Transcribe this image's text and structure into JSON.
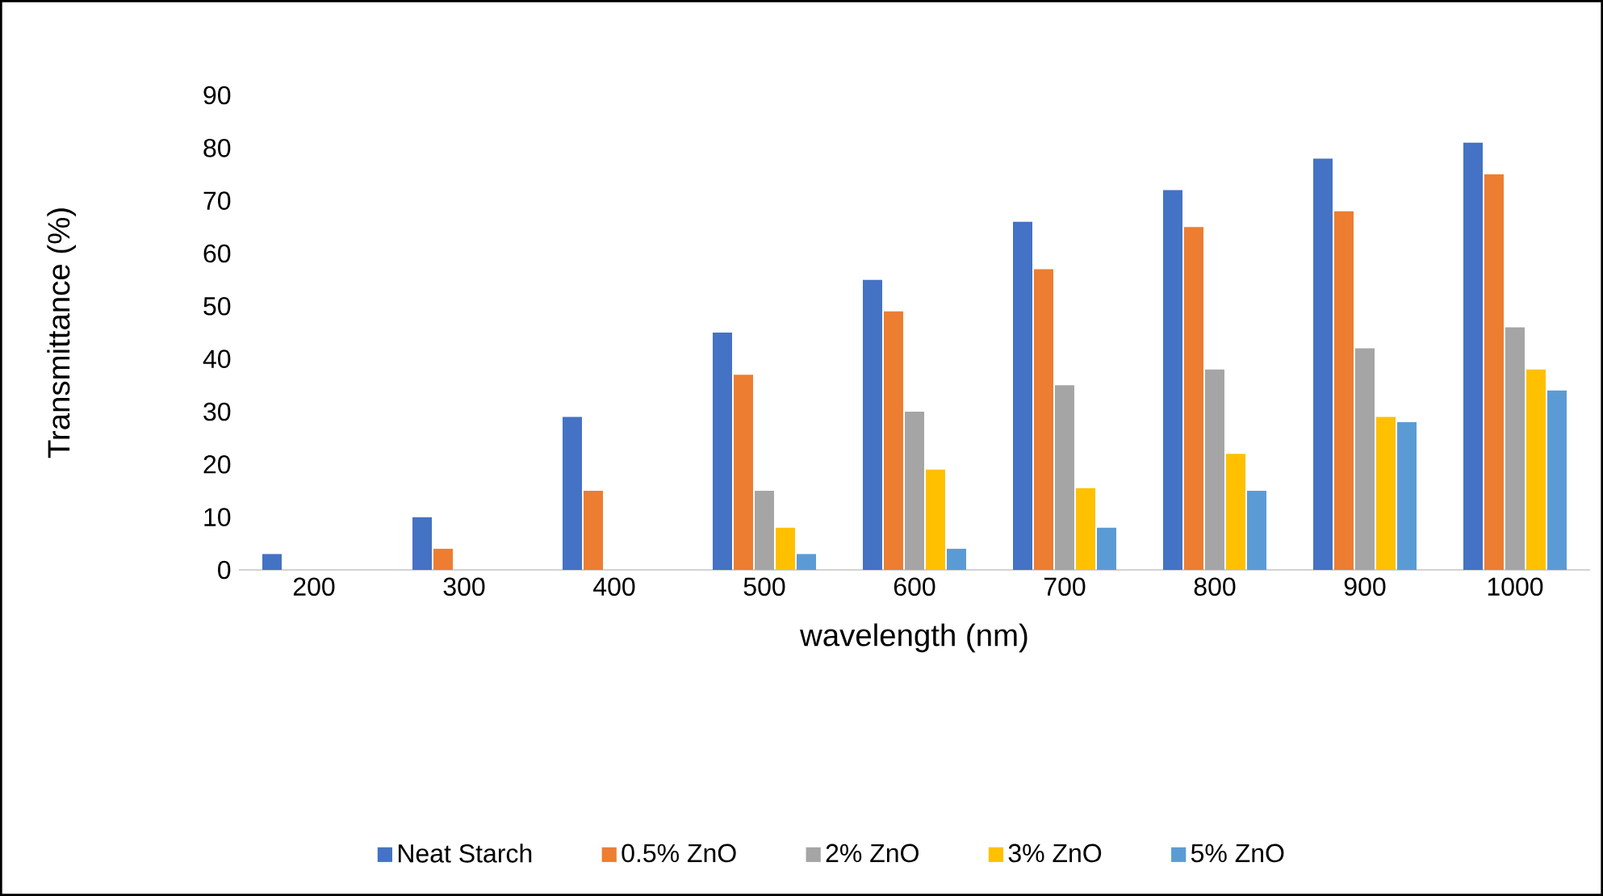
{
  "chart_data": {
    "type": "bar",
    "xlabel": "wavelength (nm)",
    "ylabel": "Transmittance (%)",
    "categories": [
      "200",
      "300",
      "400",
      "500",
      "600",
      "700",
      "800",
      "900",
      "1000"
    ],
    "series": [
      {
        "name": "Neat Starch",
        "color": "#4472c4",
        "values": [
          3,
          10,
          29,
          45,
          55,
          66,
          72,
          78,
          81
        ]
      },
      {
        "name": "0.5% ZnO",
        "color": "#ed7d31",
        "values": [
          0,
          4,
          15,
          37,
          49,
          57,
          65,
          68,
          75
        ]
      },
      {
        "name": "2% ZnO",
        "color": "#a5a5a5",
        "values": [
          0,
          0,
          0,
          15,
          30,
          35,
          38,
          42,
          46
        ]
      },
      {
        "name": "3% ZnO",
        "color": "#ffc000",
        "values": [
          0,
          0,
          0,
          8,
          19,
          15.5,
          22,
          29,
          38
        ]
      },
      {
        "name": "5% ZnO",
        "color": "#5b9bd5",
        "values": [
          0,
          0,
          0,
          3,
          4,
          8,
          15,
          28,
          34
        ]
      }
    ],
    "ylim": [
      0,
      90
    ],
    "yticks": [
      0,
      10,
      20,
      30,
      40,
      50,
      60,
      70,
      80,
      90
    ],
    "grid": false,
    "legend": "bottom"
  }
}
